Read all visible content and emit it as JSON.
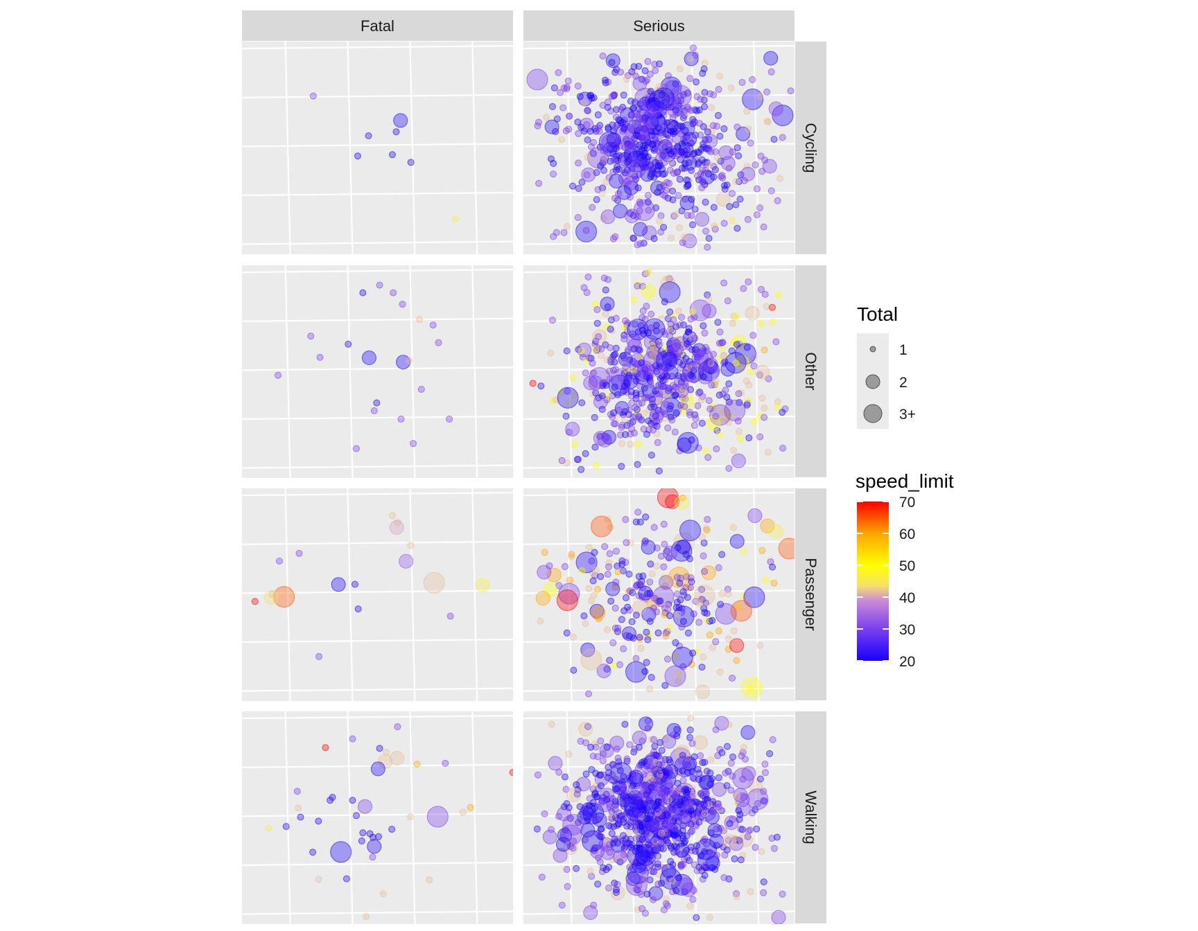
{
  "chart_data": {
    "type": "scatter",
    "facet_columns": [
      "Fatal",
      "Serious"
    ],
    "facet_rows": [
      "Cycling",
      "Other",
      "Passenger",
      "Walking"
    ],
    "grid": true,
    "axis_labels_shown": false,
    "background_color": "#ebebeb",
    "strip_color": "#d9d9d9",
    "legend_placement": "right",
    "legends": {
      "size": {
        "title": "Total",
        "entries": [
          {
            "label": "1",
            "value": 1
          },
          {
            "label": "2",
            "value": 2
          },
          {
            "label": "3+",
            "value": 3
          }
        ]
      },
      "color": {
        "title": "speed_limit",
        "range": [
          20,
          70
        ],
        "ticks": [
          "70",
          "60",
          "50",
          "40",
          "30",
          "20"
        ],
        "gradient_colors": [
          "#1a00ff",
          "#7a3ff0",
          "#cc8cd6",
          "#f5e06b",
          "#ffff00",
          "#ffa500",
          "#ff0000"
        ]
      }
    },
    "panels": [
      {
        "severity": "Fatal",
        "mode": "Cycling",
        "points": [
          [
            0.263,
            0.744,
            1,
            30
          ],
          [
            0.585,
            0.629,
            2,
            20
          ],
          [
            0.467,
            0.557,
            1,
            20
          ],
          [
            0.569,
            0.576,
            1,
            20
          ],
          [
            0.427,
            0.462,
            1,
            20
          ],
          [
            0.555,
            0.468,
            1,
            20
          ],
          [
            0.623,
            0.432,
            1,
            20
          ],
          [
            0.788,
            0.165,
            1,
            45
          ]
        ]
      },
      {
        "severity": "Fatal",
        "mode": "Other",
        "points": [
          [
            0.508,
            0.907,
            1,
            30
          ],
          [
            0.446,
            0.871,
            1,
            20
          ],
          [
            0.558,
            0.871,
            1,
            30
          ],
          [
            0.592,
            0.817,
            1,
            30
          ],
          [
            0.655,
            0.745,
            1,
            40
          ],
          [
            0.705,
            0.719,
            1,
            30
          ],
          [
            0.254,
            0.667,
            1,
            30
          ],
          [
            0.392,
            0.629,
            1,
            20
          ],
          [
            0.725,
            0.636,
            1,
            30
          ],
          [
            0.469,
            0.565,
            2,
            20
          ],
          [
            0.288,
            0.567,
            1,
            30
          ],
          [
            0.595,
            0.545,
            2,
            20
          ],
          [
            0.617,
            0.551,
            1,
            40
          ],
          [
            0.133,
            0.483,
            1,
            30
          ],
          [
            0.662,
            0.417,
            1,
            30
          ],
          [
            0.497,
            0.353,
            1,
            20
          ],
          [
            0.488,
            0.316,
            1,
            30
          ],
          [
            0.587,
            0.277,
            1,
            30
          ],
          [
            0.765,
            0.277,
            1,
            30
          ],
          [
            0.632,
            0.162,
            1,
            30
          ],
          [
            0.422,
            0.138,
            1,
            30
          ]
        ]
      },
      {
        "severity": "Fatal",
        "mode": "Passenger",
        "points": [
          [
            0.555,
            0.872,
            1,
            40
          ],
          [
            0.575,
            0.84,
            1,
            40
          ],
          [
            0.571,
            0.816,
            2,
            38
          ],
          [
            0.211,
            0.694,
            1,
            30
          ],
          [
            0.138,
            0.658,
            1,
            30
          ],
          [
            0.623,
            0.732,
            1,
            40
          ],
          [
            0.605,
            0.657,
            2,
            32
          ],
          [
            0.709,
            0.556,
            3,
            40
          ],
          [
            0.356,
            0.548,
            2,
            20
          ],
          [
            0.417,
            0.549,
            1,
            20
          ],
          [
            0.888,
            0.546,
            2,
            45
          ],
          [
            0.155,
            0.49,
            3,
            65
          ],
          [
            0.108,
            0.488,
            2,
            42
          ],
          [
            0.048,
            0.468,
            1,
            70
          ],
          [
            0.11,
            0.503,
            1,
            40
          ],
          [
            0.429,
            0.433,
            1,
            20
          ],
          [
            0.769,
            0.399,
            1,
            30
          ],
          [
            0.284,
            0.209,
            1,
            30
          ]
        ]
      },
      {
        "severity": "Fatal",
        "mode": "Walking",
        "points": [
          [
            0.574,
            0.928,
            1,
            30
          ],
          [
            0.408,
            0.871,
            1,
            30
          ],
          [
            0.308,
            0.83,
            1,
            70
          ],
          [
            0.508,
            0.826,
            1,
            20
          ],
          [
            0.532,
            0.808,
            1,
            40
          ],
          [
            0.572,
            0.78,
            2,
            40
          ],
          [
            0.529,
            0.765,
            2,
            40
          ],
          [
            0.646,
            0.752,
            1,
            60
          ],
          [
            0.75,
            0.756,
            1,
            30
          ],
          [
            0.999,
            0.713,
            1,
            70
          ],
          [
            0.502,
            0.73,
            2,
            20
          ],
          [
            0.204,
            0.624,
            1,
            30
          ],
          [
            0.334,
            0.596,
            1,
            20
          ],
          [
            0.208,
            0.546,
            1,
            40
          ],
          [
            0.325,
            0.582,
            1,
            20
          ],
          [
            0.408,
            0.582,
            1,
            20
          ],
          [
            0.454,
            0.553,
            2,
            30
          ],
          [
            0.422,
            0.51,
            1,
            20
          ],
          [
            0.216,
            0.503,
            1,
            20
          ],
          [
            0.622,
            0.504,
            1,
            40
          ],
          [
            0.722,
            0.505,
            3,
            30
          ],
          [
            0.815,
            0.526,
            1,
            40
          ],
          [
            0.843,
            0.548,
            1,
            60
          ],
          [
            0.282,
            0.484,
            1,
            20
          ],
          [
            0.098,
            0.451,
            1,
            45
          ],
          [
            0.163,
            0.459,
            1,
            20
          ],
          [
            0.553,
            0.446,
            1,
            20
          ],
          [
            0.446,
            0.429,
            1,
            20
          ],
          [
            0.472,
            0.425,
            1,
            20
          ],
          [
            0.483,
            0.408,
            1,
            20
          ],
          [
            0.504,
            0.411,
            1,
            20
          ],
          [
            0.442,
            0.391,
            1,
            20
          ],
          [
            0.488,
            0.365,
            2,
            20
          ],
          [
            0.261,
            0.338,
            1,
            20
          ],
          [
            0.365,
            0.339,
            3,
            20
          ],
          [
            0.482,
            0.315,
            1,
            30
          ],
          [
            0.386,
            0.213,
            1,
            20
          ],
          [
            0.283,
            0.21,
            1,
            40
          ],
          [
            0.691,
            0.208,
            1,
            40
          ],
          [
            0.521,
            0.142,
            1,
            40
          ],
          [
            0.458,
            0.035,
            1,
            40
          ]
        ]
      },
      {
        "severity": "Serious",
        "mode": "Cycling",
        "seed": 11,
        "count": 700,
        "clusters": [
          {
            "cx": 0.48,
            "cy": 0.52,
            "sx": 0.12,
            "sy": 0.15,
            "weight": 0.55,
            "speeds": [
              20,
              20,
              20,
              30
            ]
          },
          {
            "cx": 0.5,
            "cy": 0.5,
            "sx": 0.25,
            "sy": 0.3,
            "weight": 0.45,
            "speeds": [
              30,
              30,
              20,
              30,
              40
            ]
          }
        ],
        "extra_points": [
          [
            0.105,
            0.599,
            2,
            20
          ],
          [
            0.44,
            0.619,
            3,
            30
          ],
          [
            0.755,
            0.428,
            2,
            30
          ],
          [
            0.828,
            0.377,
            2,
            30
          ],
          [
            0.898,
            0.763,
            1,
            30
          ],
          [
            0.986,
            0.768,
            1,
            30
          ],
          [
            0.83,
            0.589,
            1,
            40
          ],
          [
            0.77,
            0.158,
            1,
            45
          ],
          [
            0.4,
            0.18,
            2,
            30
          ]
        ]
      },
      {
        "severity": "Serious",
        "mode": "Other",
        "seed": 23,
        "count": 620,
        "clusters": [
          {
            "cx": 0.48,
            "cy": 0.48,
            "sx": 0.13,
            "sy": 0.15,
            "weight": 0.5,
            "speeds": [
              20,
              20,
              30,
              30
            ]
          },
          {
            "cx": 0.5,
            "cy": 0.5,
            "sx": 0.26,
            "sy": 0.28,
            "weight": 0.5,
            "speeds": [
              30,
              30,
              40,
              20,
              50
            ]
          }
        ],
        "extra_points": [
          [
            0.533,
            0.918,
            2,
            40
          ],
          [
            0.54,
            0.874,
            3,
            20
          ],
          [
            0.035,
            0.445,
            1,
            70
          ],
          [
            0.918,
            0.802,
            1,
            70
          ],
          [
            0.164,
            0.377,
            3,
            20
          ],
          [
            0.607,
            0.165,
            3,
            20
          ],
          [
            0.754,
            0.511,
            2,
            20
          ],
          [
            0.889,
            0.602,
            1,
            60
          ],
          [
            0.287,
            0.575,
            1,
            40
          ],
          [
            0.285,
            0.187,
            2,
            30
          ]
        ]
      },
      {
        "severity": "Serious",
        "mode": "Passenger",
        "seed": 37,
        "count": 280,
        "clusters": [
          {
            "cx": 0.47,
            "cy": 0.5,
            "sx": 0.12,
            "sy": 0.16,
            "weight": 0.4,
            "speeds": [
              20,
              20,
              30
            ]
          },
          {
            "cx": 0.5,
            "cy": 0.52,
            "sx": 0.25,
            "sy": 0.25,
            "weight": 0.6,
            "speeds": [
              30,
              30,
              40,
              40,
              50,
              60,
              20
            ]
          }
        ],
        "extra_points": [
          [
            0.533,
            0.958,
            3,
            70
          ],
          [
            0.549,
            0.937,
            2,
            70
          ],
          [
            0.584,
            0.933,
            2,
            45
          ],
          [
            0.288,
            0.821,
            3,
            65
          ],
          [
            0.615,
            0.802,
            3,
            20
          ],
          [
            0.9,
            0.823,
            2,
            60
          ],
          [
            0.98,
            0.717,
            3,
            65
          ],
          [
            0.933,
            0.796,
            2,
            45
          ],
          [
            0.162,
            0.474,
            3,
            70
          ],
          [
            0.072,
            0.483,
            2,
            60
          ],
          [
            0.076,
            0.606,
            2,
            30
          ],
          [
            0.804,
            0.424,
            3,
            65
          ],
          [
            0.787,
            0.261,
            2,
            70
          ],
          [
            0.56,
            0.117,
            3,
            30
          ],
          [
            0.25,
            0.195,
            3,
            40
          ]
        ]
      },
      {
        "severity": "Serious",
        "mode": "Walking",
        "seed": 51,
        "count": 900,
        "clusters": [
          {
            "cx": 0.49,
            "cy": 0.52,
            "sx": 0.13,
            "sy": 0.16,
            "weight": 0.5,
            "speeds": [
              20,
              20,
              20,
              30
            ]
          },
          {
            "cx": 0.5,
            "cy": 0.5,
            "sx": 0.23,
            "sy": 0.25,
            "weight": 0.5,
            "speeds": [
              30,
              30,
              30,
              20,
              40
            ]
          }
        ],
        "extra_points": [
          [
            0.566,
            0.915,
            1,
            20
          ],
          [
            0.258,
            0.52,
            3,
            20
          ],
          [
            0.255,
            0.39,
            3,
            20
          ],
          [
            0.147,
            0.375,
            2,
            20
          ],
          [
            0.864,
            0.587,
            3,
            30
          ],
          [
            0.819,
            0.396,
            2,
            40
          ],
          [
            0.418,
            0.183,
            3,
            30
          ]
        ]
      }
    ]
  }
}
